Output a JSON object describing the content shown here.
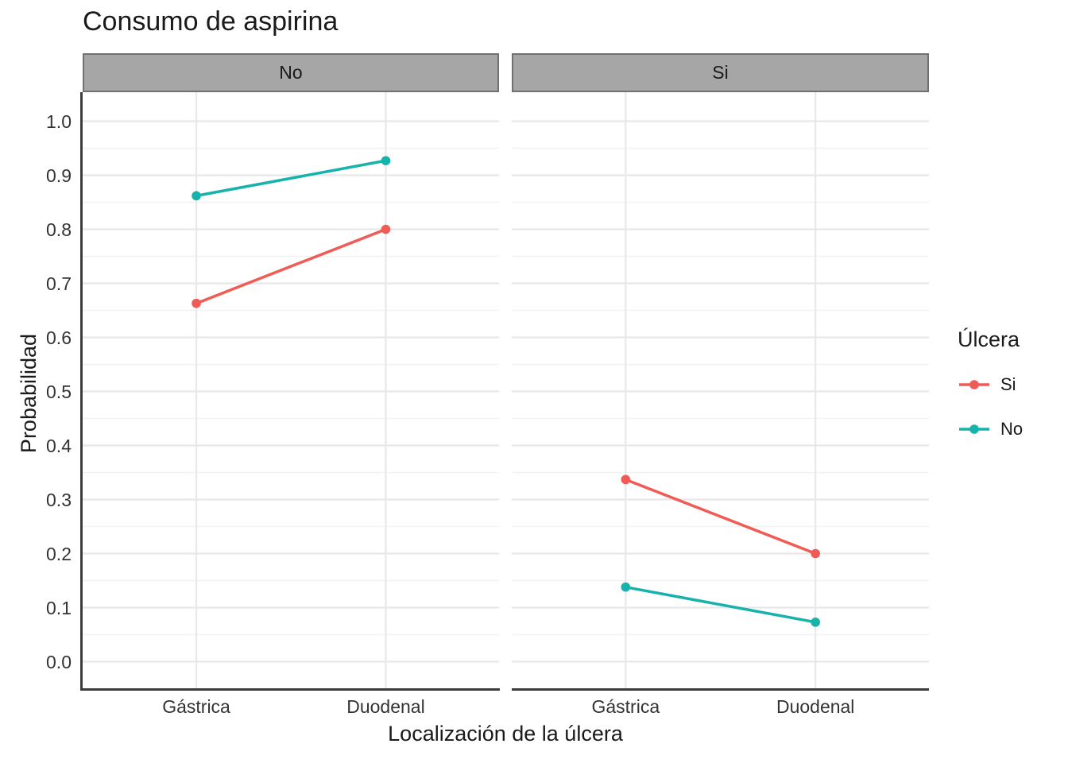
{
  "chart_data": {
    "type": "line",
    "title": "Consumo de aspirina",
    "xlabel": "Localización de la úlcera",
    "ylabel": "Probabilidad",
    "ylim": [
      0.0,
      1.0
    ],
    "yticks": [
      0.0,
      0.1,
      0.2,
      0.3,
      0.4,
      0.5,
      0.6,
      0.7,
      0.8,
      0.9,
      1.0
    ],
    "ytick_labels": [
      "0.0",
      "0.1",
      "0.2",
      "0.3",
      "0.4",
      "0.5",
      "0.6",
      "0.7",
      "0.8",
      "0.9",
      "1.0"
    ],
    "categories": [
      "Gástrica",
      "Duodenal"
    ],
    "grid": true,
    "facets": [
      {
        "label": "No",
        "series": [
          {
            "name": "Si",
            "color": "#F15B55",
            "values": [
              0.663,
              0.8
            ]
          },
          {
            "name": "No",
            "color": "#17B2AC",
            "values": [
              0.862,
              0.927
            ]
          }
        ]
      },
      {
        "label": "Si",
        "series": [
          {
            "name": "Si",
            "color": "#F15B55",
            "values": [
              0.337,
              0.2
            ]
          },
          {
            "name": "No",
            "color": "#17B2AC",
            "values": [
              0.138,
              0.073
            ]
          }
        ]
      }
    ],
    "legend": {
      "title": "Úlcera",
      "position": "right",
      "entries": [
        {
          "label": "Si",
          "color": "#F15B55"
        },
        {
          "label": "No",
          "color": "#17B2AC"
        }
      ]
    },
    "colors": {
      "series_si": "#F15B55",
      "series_no": "#17B2AC",
      "strip_fill": "#A6A6A6",
      "strip_border": "#707070",
      "grid_major": "#E8E8E8",
      "grid_minor": "#F2F2F2",
      "axis_line": "#3C3C3C"
    }
  }
}
